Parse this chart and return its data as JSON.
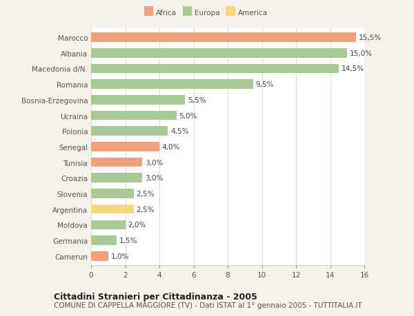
{
  "countries": [
    "Marocco",
    "Albania",
    "Macedonia d/N.",
    "Romania",
    "Bosnia-Erzegovina",
    "Ucraina",
    "Polonia",
    "Senegal",
    "Tunisia",
    "Croazia",
    "Slovenia",
    "Argentina",
    "Moldova",
    "Germania",
    "Camerun"
  ],
  "values": [
    15.5,
    15.0,
    14.5,
    9.5,
    5.5,
    5.0,
    4.5,
    4.0,
    3.0,
    3.0,
    2.5,
    2.5,
    2.0,
    1.5,
    1.0
  ],
  "continents": [
    "Africa",
    "Europa",
    "Europa",
    "Europa",
    "Europa",
    "Europa",
    "Europa",
    "Africa",
    "Africa",
    "Europa",
    "Europa",
    "America",
    "Europa",
    "Europa",
    "Africa"
  ],
  "colors": {
    "Africa": "#F0A07A",
    "Europa": "#A8C896",
    "America": "#F5D87A"
  },
  "labels": [
    "15,5%",
    "15,0%",
    "14,5%",
    "9,5%",
    "5,5%",
    "5,0%",
    "4,5%",
    "4,0%",
    "3,0%",
    "3,0%",
    "2,5%",
    "2,5%",
    "2,0%",
    "1,5%",
    "1,0%"
  ],
  "xlim": [
    0,
    16
  ],
  "xticks": [
    0,
    2,
    4,
    6,
    8,
    10,
    12,
    14,
    16
  ],
  "title": "Cittadini Stranieri per Cittadinanza - 2005",
  "subtitle": "COMUNE DI CAPPELLA MAGGIORE (TV) - Dati ISTAT al 1° gennaio 2005 - TUTTITALIA.IT",
  "legend_labels": [
    "Africa",
    "Europa",
    "America"
  ],
  "legend_colors": [
    "#F0A07A",
    "#A8C896",
    "#F5D87A"
  ],
  "figure_bg_color": "#F5F0E8",
  "plot_bg_color": "#FFFFFF",
  "bar_edge_color": "#CCCCCC",
  "grid_color": "#DDDDDD",
  "title_fontsize": 9,
  "subtitle_fontsize": 7.5,
  "label_fontsize": 7.5,
  "tick_fontsize": 7.5,
  "bar_height": 0.6
}
